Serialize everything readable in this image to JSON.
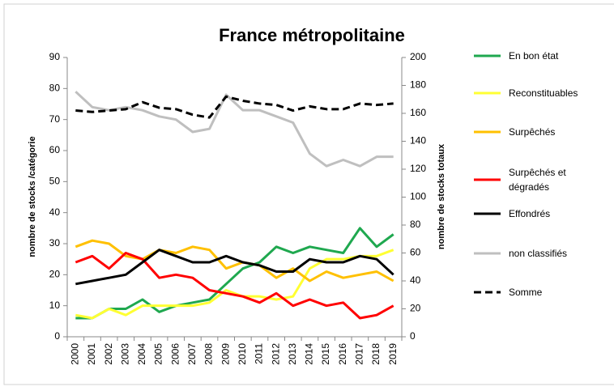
{
  "chart_data": {
    "type": "line",
    "title": "France métropolitaine",
    "y_label": "nombre de stocks /catégorie",
    "y2_label": "nombre de stocks totaux",
    "categories": [
      "2000",
      "2001",
      "2002",
      "2003",
      "2004",
      "2005",
      "2006",
      "2007",
      "2008",
      "2009",
      "2010",
      "2011",
      "2012",
      "2013",
      "2014",
      "2015",
      "2016",
      "2017",
      "2018",
      "2019"
    ],
    "ylim": [
      0,
      90
    ],
    "yticks": [
      0,
      10,
      20,
      30,
      40,
      50,
      60,
      70,
      80,
      90
    ],
    "y2lim": [
      0,
      200
    ],
    "y2ticks": [
      0,
      20,
      40,
      60,
      80,
      100,
      120,
      140,
      160,
      180,
      200
    ],
    "grid": false,
    "legend": "right",
    "series": [
      {
        "name": "En bon état",
        "color": "#1fa84f",
        "values": [
          6,
          6,
          9,
          9,
          12,
          8,
          10,
          11,
          12,
          17,
          22,
          24,
          29,
          27,
          29,
          28,
          27,
          35,
          29,
          33
        ]
      },
      {
        "name": "Reconstituables",
        "color": "#ffff33",
        "values": [
          7,
          6,
          9,
          7,
          10,
          10,
          10,
          10,
          11,
          15,
          13,
          13,
          12,
          13,
          22,
          25,
          25,
          26,
          26,
          28
        ]
      },
      {
        "name": "Surpêchés",
        "color": "#ffc000",
        "values": [
          29,
          31,
          30,
          26,
          25,
          28,
          27,
          29,
          28,
          22,
          24,
          23,
          19,
          22,
          18,
          21,
          19,
          20,
          21,
          18
        ]
      },
      {
        "name": "Surpêchés et dégradés",
        "color": "#ff0000",
        "values": [
          24,
          26,
          22,
          27,
          25,
          19,
          20,
          19,
          15,
          14,
          13,
          11,
          14,
          10,
          12,
          10,
          11,
          6,
          7,
          10
        ]
      },
      {
        "name": "Effondrés",
        "color": "#000000",
        "values": [
          17,
          18,
          19,
          20,
          24,
          28,
          26,
          24,
          24,
          26,
          24,
          23,
          21,
          21,
          25,
          24,
          24,
          26,
          25,
          20
        ]
      },
      {
        "name": "non classifiés",
        "color": "#bfbfbf",
        "values": [
          79,
          74,
          73,
          74,
          73,
          71,
          70,
          66,
          67,
          78,
          73,
          73,
          71,
          69,
          59,
          55,
          57,
          55,
          58,
          58
        ]
      },
      {
        "name": "Somme",
        "color": "#000000",
        "dashed": true,
        "axis": "y2",
        "values": [
          162,
          161,
          162,
          163,
          168,
          164,
          163,
          159,
          157,
          172,
          169,
          167,
          166,
          162,
          165,
          163,
          163,
          167,
          166,
          167
        ]
      }
    ]
  }
}
